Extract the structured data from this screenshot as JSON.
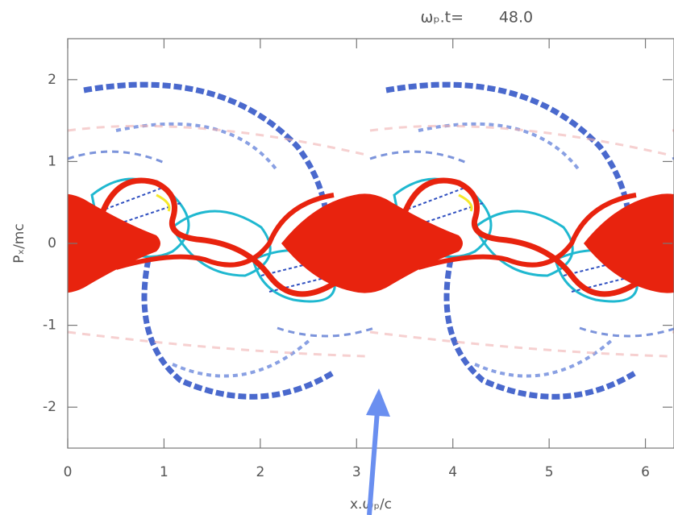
{
  "chart_data": {
    "type": "phase-space",
    "time_label": "ωₚ.t=",
    "time_value": "48.0",
    "x_label": "x.ωₚ/c",
    "y_label": "Pₓ/mc",
    "xlim": [
      0,
      6.28
    ],
    "xticks": [
      0,
      1,
      2,
      3,
      4,
      5,
      6
    ],
    "ylim": [
      -2.5,
      2.5
    ],
    "yticks": [
      -2,
      -1,
      0,
      1,
      2
    ]
  }
}
